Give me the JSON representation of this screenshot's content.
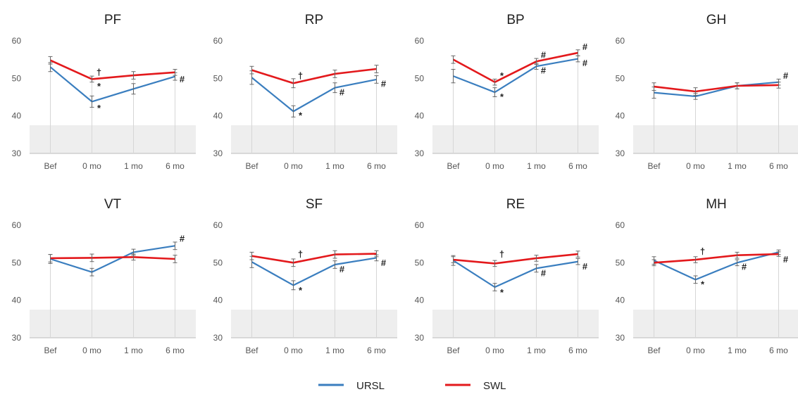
{
  "legend": {
    "items": [
      {
        "label": "URSL",
        "color": "#3a7ebf"
      },
      {
        "label": "SWL",
        "color": "#e3191c"
      }
    ]
  },
  "chart_data": [
    {
      "type": "line",
      "title": "PF",
      "categories": [
        "Bef",
        "0 mo",
        "1 mo",
        "6 mo"
      ],
      "ylim": [
        30,
        60
      ],
      "yticks": [
        30,
        40,
        50,
        60
      ],
      "shaded_below": 37.5,
      "series": [
        {
          "name": "URSL",
          "values": [
            53.0,
            43.8,
            47.2,
            50.5
          ],
          "err": [
            1.2,
            1.5,
            1.4,
            1.0
          ]
        },
        {
          "name": "SWL",
          "values": [
            54.8,
            49.8,
            50.8,
            51.6
          ],
          "err": [
            1.0,
            0.8,
            1.0,
            0.8
          ]
        }
      ],
      "annotations": [
        {
          "cat": 1,
          "y": 51.6,
          "text": "†"
        },
        {
          "cat": 1,
          "y": 47.8,
          "text": "*"
        },
        {
          "cat": 1,
          "y": 42.0,
          "text": "*"
        },
        {
          "cat": 3,
          "y": 49.7,
          "text": "#"
        }
      ]
    },
    {
      "type": "line",
      "title": "RP",
      "categories": [
        "Bef",
        "0 mo",
        "1 mo",
        "6 mo"
      ],
      "ylim": [
        30,
        60
      ],
      "yticks": [
        30,
        40,
        50,
        60
      ],
      "shaded_below": 37.5,
      "series": [
        {
          "name": "URSL",
          "values": [
            50.2,
            41.2,
            47.5,
            49.7
          ],
          "err": [
            1.8,
            1.5,
            1.3,
            1.0
          ]
        },
        {
          "name": "SWL",
          "values": [
            52.2,
            48.7,
            51.2,
            52.5
          ],
          "err": [
            1.0,
            1.2,
            1.0,
            1.0
          ]
        }
      ],
      "annotations": [
        {
          "cat": 1,
          "y": 50.6,
          "text": "†"
        },
        {
          "cat": 1,
          "y": 40.0,
          "text": "*"
        },
        {
          "cat": 2,
          "y": 46.2,
          "text": "#"
        },
        {
          "cat": 3,
          "y": 48.5,
          "text": "#"
        }
      ]
    },
    {
      "type": "line",
      "title": "BP",
      "categories": [
        "Bef",
        "0 mo",
        "1 mo",
        "6 mo"
      ],
      "ylim": [
        30,
        60
      ],
      "yticks": [
        30,
        40,
        50,
        60
      ],
      "shaded_below": 37.5,
      "series": [
        {
          "name": "URSL",
          "values": [
            50.6,
            46.3,
            53.2,
            55.2
          ],
          "err": [
            1.8,
            1.2,
            0.8,
            0.8
          ]
        },
        {
          "name": "SWL",
          "values": [
            55.0,
            49.0,
            54.5,
            56.8
          ],
          "err": [
            1.0,
            0.8,
            0.8,
            0.8
          ]
        }
      ],
      "annotations": [
        {
          "cat": 1,
          "y": 50.6,
          "text": "*"
        },
        {
          "cat": 1,
          "y": 45.0,
          "text": "*"
        },
        {
          "cat": 2,
          "y": 56.2,
          "text": "#"
        },
        {
          "cat": 2,
          "y": 52.0,
          "text": "#"
        },
        {
          "cat": 3,
          "y": 58.3,
          "text": "#"
        },
        {
          "cat": 3,
          "y": 54.0,
          "text": "#"
        }
      ]
    },
    {
      "type": "line",
      "title": "GH",
      "categories": [
        "Bef",
        "0 mo",
        "1 mo",
        "6 mo"
      ],
      "ylim": [
        30,
        60
      ],
      "yticks": [
        30,
        40,
        50,
        60
      ],
      "shaded_below": 37.5,
      "series": [
        {
          "name": "URSL",
          "values": [
            46.2,
            45.2,
            48.0,
            49.0
          ],
          "err": [
            1.5,
            0.8,
            0.8,
            0.8
          ]
        },
        {
          "name": "SWL",
          "values": [
            47.8,
            46.5,
            48.0,
            48.2
          ],
          "err": [
            1.0,
            1.0,
            0.8,
            0.8
          ]
        }
      ],
      "annotations": [
        {
          "cat": 3,
          "y": 50.6,
          "text": "#"
        }
      ]
    },
    {
      "type": "line",
      "title": "VT",
      "categories": [
        "Bef",
        "0 mo",
        "1 mo",
        "6 mo"
      ],
      "ylim": [
        30,
        60
      ],
      "yticks": [
        30,
        40,
        50,
        60
      ],
      "shaded_below": 37.5,
      "series": [
        {
          "name": "URSL",
          "values": [
            51.0,
            47.5,
            52.8,
            54.5
          ],
          "err": [
            1.2,
            1.0,
            0.8,
            1.0
          ]
        },
        {
          "name": "SWL",
          "values": [
            51.2,
            51.3,
            51.5,
            51.0
          ],
          "err": [
            1.0,
            1.0,
            0.8,
            1.0
          ]
        }
      ],
      "annotations": [
        {
          "cat": 3,
          "y": 56.3,
          "text": "#"
        }
      ]
    },
    {
      "type": "line",
      "title": "SF",
      "categories": [
        "Bef",
        "0 mo",
        "1 mo",
        "6 mo"
      ],
      "ylim": [
        30,
        60
      ],
      "yticks": [
        30,
        40,
        50,
        60
      ],
      "shaded_below": 37.5,
      "series": [
        {
          "name": "URSL",
          "values": [
            50.2,
            44.0,
            49.5,
            51.3
          ],
          "err": [
            1.5,
            1.2,
            1.0,
            0.8
          ]
        },
        {
          "name": "SWL",
          "values": [
            51.8,
            50.0,
            52.2,
            52.4
          ],
          "err": [
            1.0,
            1.0,
            1.0,
            0.8
          ]
        }
      ],
      "annotations": [
        {
          "cat": 1,
          "y": 52.2,
          "text": "†"
        },
        {
          "cat": 1,
          "y": 42.6,
          "text": "*"
        },
        {
          "cat": 2,
          "y": 48.2,
          "text": "#"
        },
        {
          "cat": 3,
          "y": 49.9,
          "text": "#"
        }
      ]
    },
    {
      "type": "line",
      "title": "RE",
      "categories": [
        "Bef",
        "0 mo",
        "1 mo",
        "6 mo"
      ],
      "ylim": [
        30,
        60
      ],
      "yticks": [
        30,
        40,
        50,
        60
      ],
      "shaded_below": 37.5,
      "series": [
        {
          "name": "URSL",
          "values": [
            50.6,
            43.5,
            48.5,
            50.3
          ],
          "err": [
            1.3,
            1.0,
            1.0,
            0.8
          ]
        },
        {
          "name": "SWL",
          "values": [
            50.8,
            49.8,
            51.2,
            52.3
          ],
          "err": [
            0.8,
            0.8,
            0.8,
            0.8
          ]
        }
      ],
      "annotations": [
        {
          "cat": 1,
          "y": 52.2,
          "text": "†"
        },
        {
          "cat": 1,
          "y": 42.0,
          "text": "*"
        },
        {
          "cat": 2,
          "y": 47.2,
          "text": "#"
        },
        {
          "cat": 3,
          "y": 48.9,
          "text": "#"
        }
      ]
    },
    {
      "type": "line",
      "title": "MH",
      "categories": [
        "Bef",
        "0 mo",
        "1 mo",
        "6 mo"
      ],
      "ylim": [
        30,
        60
      ],
      "yticks": [
        30,
        40,
        50,
        60
      ],
      "shaded_below": 37.5,
      "series": [
        {
          "name": "URSL",
          "values": [
            50.6,
            45.5,
            50.0,
            52.8
          ],
          "err": [
            1.0,
            1.0,
            0.8,
            0.6
          ]
        },
        {
          "name": "SWL",
          "values": [
            50.0,
            50.8,
            52.0,
            52.3
          ],
          "err": [
            0.8,
            0.8,
            0.8,
            0.6
          ]
        }
      ],
      "annotations": [
        {
          "cat": 1,
          "y": 53.0,
          "text": "†"
        },
        {
          "cat": 1,
          "y": 44.2,
          "text": "*"
        },
        {
          "cat": 2,
          "y": 48.8,
          "text": "#"
        },
        {
          "cat": 3,
          "y": 50.8,
          "text": "#"
        }
      ]
    }
  ]
}
